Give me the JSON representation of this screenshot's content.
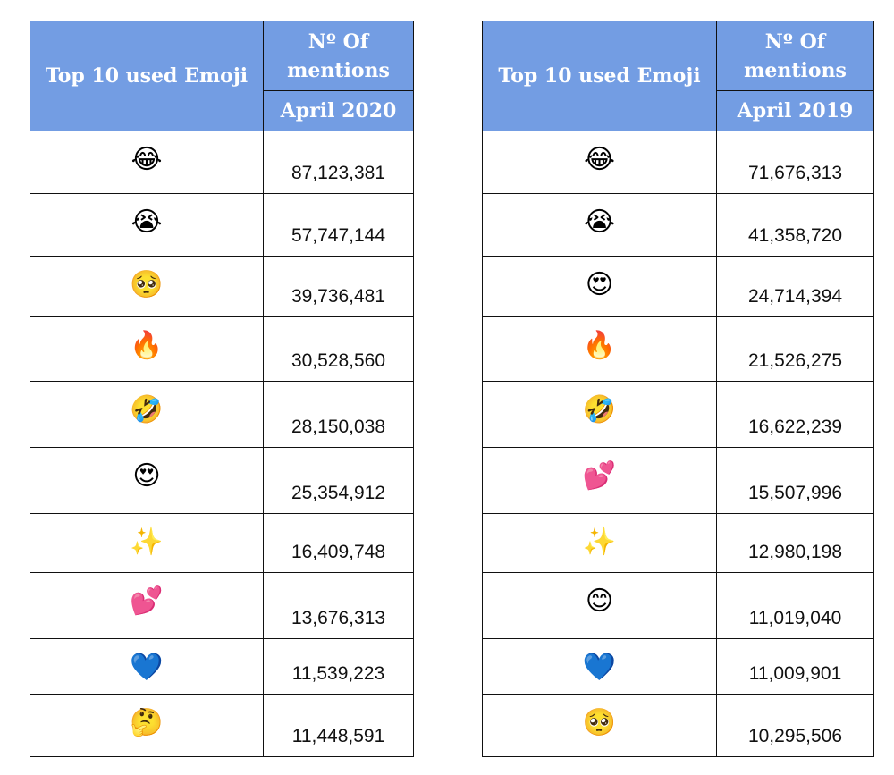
{
  "tables": [
    {
      "header_emoji": "Top 10 used Emoji",
      "header_mentions": "Nº Of mentions",
      "header_period": "April 2020",
      "rows": [
        {
          "emoji": "😂",
          "icon": "face-with-tears-of-joy",
          "count": "87,123,381"
        },
        {
          "emoji": "😭",
          "icon": "loudly-crying-face",
          "count": "57,747,144"
        },
        {
          "emoji": "🥺",
          "icon": "pleading-face",
          "count": "39,736,481"
        },
        {
          "emoji": "🔥",
          "icon": "fire",
          "count": "30,528,560"
        },
        {
          "emoji": "🤣",
          "icon": "rolling-on-floor-laughing",
          "count": "28,150,038"
        },
        {
          "emoji": "😍",
          "icon": "heart-eyes",
          "count": "25,354,912"
        },
        {
          "emoji": "✨",
          "icon": "sparkles",
          "count": "16,409,748"
        },
        {
          "emoji": "💕",
          "icon": "two-hearts",
          "count": "13,676,313"
        },
        {
          "emoji": "💙",
          "icon": "blue-heart",
          "count": "11,539,223"
        },
        {
          "emoji": "🤔",
          "icon": "thinking-face",
          "count": "11,448,591"
        }
      ]
    },
    {
      "header_emoji": "Top 10 used Emoji",
      "header_mentions": "Nº Of mentions",
      "header_period": "April 2019",
      "rows": [
        {
          "emoji": "😂",
          "icon": "face-with-tears-of-joy",
          "count": "71,676,313"
        },
        {
          "emoji": "😭",
          "icon": "loudly-crying-face",
          "count": "41,358,720"
        },
        {
          "emoji": "😍",
          "icon": "heart-eyes",
          "count": "24,714,394"
        },
        {
          "emoji": "🔥",
          "icon": "fire",
          "count": "21,526,275"
        },
        {
          "emoji": "🤣",
          "icon": "rolling-on-floor-laughing",
          "count": "16,622,239"
        },
        {
          "emoji": "💕",
          "icon": "two-hearts",
          "count": "15,507,996"
        },
        {
          "emoji": "✨",
          "icon": "sparkles",
          "count": "12,980,198"
        },
        {
          "emoji": "😊",
          "icon": "smiling-face",
          "count": "11,019,040"
        },
        {
          "emoji": "💙",
          "icon": "blue-heart",
          "count": "11,009,901"
        },
        {
          "emoji": "🥺",
          "icon": "pleading-face",
          "count": "10,295,506"
        }
      ]
    }
  ],
  "colors": {
    "header_bg": "#739de3",
    "header_text": "#ffffff"
  }
}
